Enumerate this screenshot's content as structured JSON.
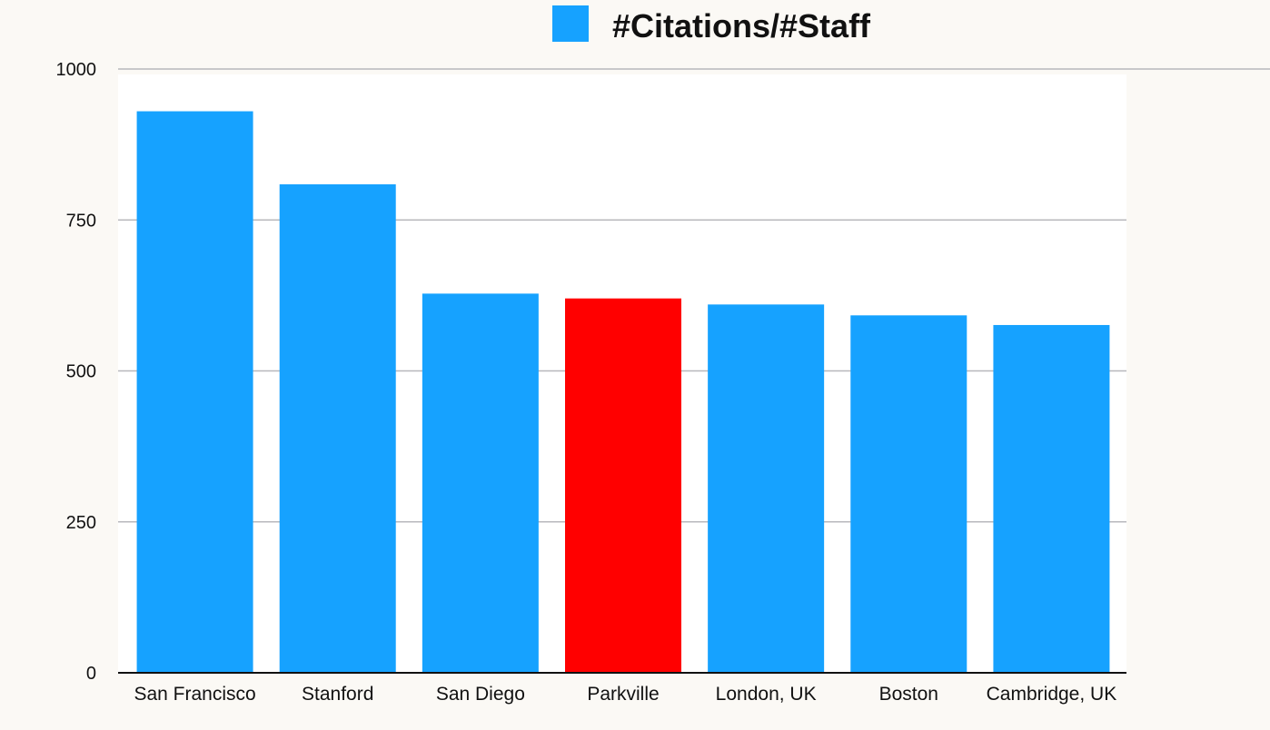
{
  "chart_data": {
    "type": "bar",
    "title": "",
    "xlabel": "",
    "ylabel": "",
    "categories": [
      "San Francisco",
      "Stanford",
      "San Diego",
      "Parkville",
      "London, UK",
      "Boston",
      "Cambridge, UK"
    ],
    "series": [
      {
        "name": "#Citations/#Staff",
        "values": [
          930,
          809,
          628,
          620,
          610,
          592,
          576
        ]
      }
    ],
    "highlight_category": "Parkville",
    "ylim": [
      0,
      1000
    ],
    "yticks": [
      0,
      250,
      500,
      750,
      1000
    ],
    "ytick_labels": [
      "0",
      "250",
      "500",
      "750",
      "1000"
    ],
    "grid": true,
    "legend_position": "top-center",
    "colors": {
      "bar": "#16a2ff",
      "highlight": "#ff0000",
      "grid": "#b8b8bc",
      "axis": "#111111",
      "plot_background": "#ffffff"
    }
  }
}
